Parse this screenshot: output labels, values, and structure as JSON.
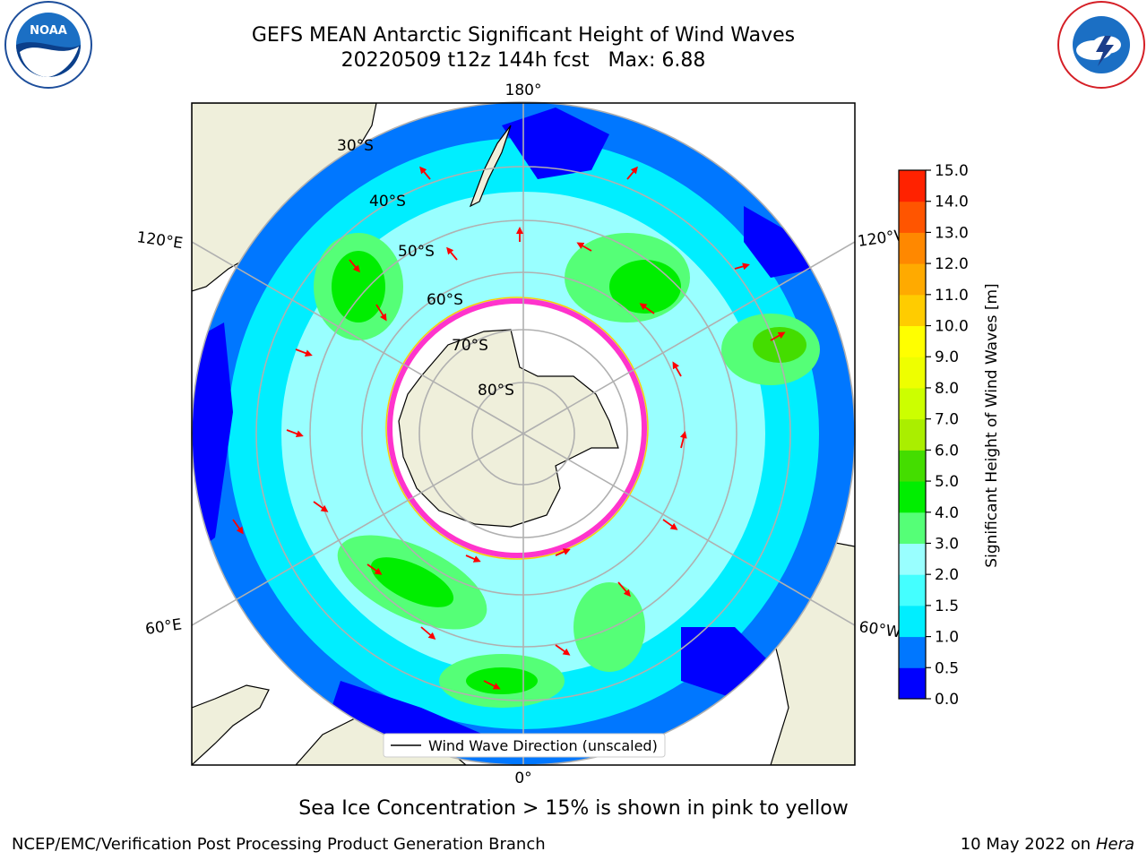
{
  "header": {
    "title_line1": "GEFS MEAN Antarctic Significant Height of Wind Waves",
    "title_line2": "20220509 t12z 144h fcst   Max: 6.88"
  },
  "logos": {
    "left": "NOAA",
    "right": "NATIONAL WEATHER SERVICE"
  },
  "map": {
    "longitude_labels": {
      "top": "180°",
      "bottom": "0°",
      "upper_left": "120°E",
      "lower_left": "60°E",
      "upper_right": "120°W",
      "lower_right": "60°W"
    },
    "latitude_labels": [
      "30°S",
      "40°S",
      "50°S",
      "60°S",
      "70°S",
      "80°S"
    ],
    "legend_label": "Wind Wave Direction (unscaled)",
    "colors": {
      "land": "#efefdb",
      "ice_interior": "#ffffff",
      "ice_edge_pink": "#ff33cc",
      "ice_edge_yellow": "#ffcc00",
      "arrow": "#ff0000",
      "gridline": "#b0b0b0"
    }
  },
  "colorbar": {
    "label": "Significant Height of Wind Waves [m]",
    "ticks": [
      "0.0",
      "0.5",
      "1.0",
      "1.5",
      "2.0",
      "3.0",
      "4.0",
      "5.0",
      "6.0",
      "7.0",
      "8.0",
      "9.0",
      "10.0",
      "11.0",
      "12.0",
      "13.0",
      "14.0",
      "15.0"
    ],
    "bin_colors": [
      "#0000ff",
      "#0077ff",
      "#00eeff",
      "#44ffff",
      "#99ffff",
      "#55ff77",
      "#00ee00",
      "#44dd00",
      "#aaee00",
      "#ccff00",
      "#eeff00",
      "#ffff00",
      "#ffcc00",
      "#ffaa00",
      "#ff8800",
      "#ff5500",
      "#ff2200"
    ]
  },
  "footer": {
    "note": "Sea Ice Concentration > 15% is shown in pink to yellow",
    "credit": "NCEP/EMC/Verification Post Processing Product Generation Branch",
    "date": "10 May 2022 on",
    "host": "Hera"
  }
}
